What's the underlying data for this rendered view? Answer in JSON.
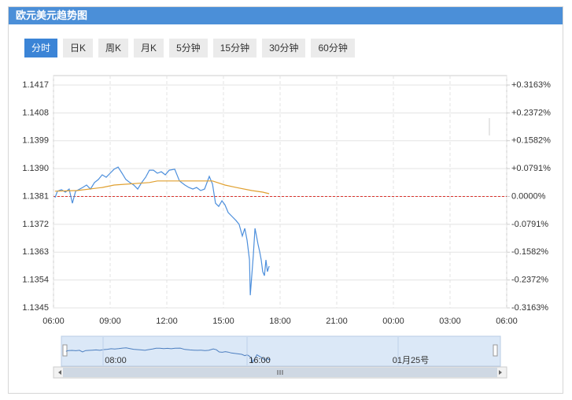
{
  "panel": {
    "title": "欧元美元趋势图",
    "tabs": [
      "分时",
      "日K",
      "周K",
      "月K",
      "5分钟",
      "15分钟",
      "30分钟",
      "60分钟"
    ],
    "active_tab": 0
  },
  "chart_data": {
    "type": "line",
    "xlim": [
      0,
      24
    ],
    "xticks": [
      {
        "value": 0,
        "label": "06:00"
      },
      {
        "value": 3,
        "label": "09:00"
      },
      {
        "value": 6,
        "label": "12:00"
      },
      {
        "value": 9,
        "label": "15:00"
      },
      {
        "value": 12,
        "label": "18:00"
      },
      {
        "value": 15,
        "label": "21:00"
      },
      {
        "value": 18,
        "label": "00:00"
      },
      {
        "value": 21,
        "label": "03:00"
      },
      {
        "value": 24,
        "label": "06:00"
      }
    ],
    "ylim": [
      1.1345,
      1.1417
    ],
    "yticks": [
      1.1417,
      1.1408,
      1.1399,
      {
        "value": 1.139,
        "label": "1.1390"
      },
      1.1381,
      1.1372,
      1.1363,
      1.1354,
      1.1345
    ],
    "y2lim": [
      -0.3163,
      0.3163
    ],
    "y2ticks": [
      {
        "value": 0.3163,
        "label": "+0.3163%"
      },
      {
        "value": 0.2372,
        "label": "+0.2372%"
      },
      {
        "value": 0.1582,
        "label": "+0.1582%"
      },
      {
        "value": 0.0791,
        "label": "+0.0791%"
      },
      {
        "value": 0,
        "label": "0.0000%"
      },
      {
        "value": -0.0791,
        "label": "-0.0791%"
      },
      {
        "value": -0.1582,
        "label": "-0.1582%"
      },
      {
        "value": -0.2372,
        "label": "-0.2372%"
      },
      {
        "value": -0.3163,
        "label": "-0.3163%"
      }
    ],
    "up_color": "#e0231c",
    "down_color": "#1c8c2a",
    "flat_color": "#999999",
    "reference_line": 1.1381,
    "reference_color": "#d9322b",
    "grid": true,
    "series": [
      {
        "color": "#4d8fdc",
        "x": [
          0.08,
          0.21,
          0.42,
          0.63,
          0.83,
          1.0,
          1.17,
          1.33,
          1.54,
          1.75,
          1.96,
          2.17,
          2.38,
          2.58,
          2.79,
          3.0,
          3.21,
          3.42,
          3.63,
          3.83,
          4.04,
          4.25,
          4.46,
          4.67,
          4.88,
          5.08,
          5.29,
          5.5,
          5.71,
          5.92,
          6.13,
          6.42,
          6.67,
          6.96,
          7.17,
          7.38,
          7.58,
          7.79,
          8.0,
          8.25,
          8.42,
          8.58,
          8.75,
          8.92,
          9.08,
          9.25,
          9.46,
          9.67,
          9.83,
          10.0,
          10.13,
          10.25,
          10.38,
          10.42,
          10.5,
          10.58,
          10.67,
          10.75,
          10.83,
          10.92,
          11.0,
          11.08,
          11.17,
          11.25,
          11.33,
          11.42
        ],
        "values": [
          1.13806,
          1.13827,
          1.13832,
          1.13824,
          1.13834,
          1.13788,
          1.13827,
          1.13832,
          1.13839,
          1.13847,
          1.13834,
          1.13855,
          1.13865,
          1.1388,
          1.13872,
          1.13885,
          1.13898,
          1.13905,
          1.13885,
          1.13865,
          1.13855,
          1.13847,
          1.13834,
          1.13855,
          1.13872,
          1.13895,
          1.13895,
          1.13885,
          1.1389,
          1.1388,
          1.13895,
          1.13898,
          1.1386,
          1.13847,
          1.13839,
          1.13834,
          1.13839,
          1.13829,
          1.13834,
          1.13875,
          1.1385,
          1.13788,
          1.13778,
          1.13796,
          1.13783,
          1.13758,
          1.13745,
          1.13732,
          1.1372,
          1.13682,
          1.13707,
          1.13669,
          1.13605,
          1.13491,
          1.13554,
          1.13618,
          1.13707,
          1.13682,
          1.13656,
          1.13631,
          1.13605,
          1.13567,
          1.13554,
          1.13605,
          1.13567,
          1.13585
        ]
      },
      {
        "color": "#e0a030",
        "x": [
          0.08,
          1.25,
          2.58,
          3.21,
          5.08,
          5.5,
          8.42,
          9.08,
          9.67,
          10.5,
          11.08,
          11.42
        ],
        "values": [
          1.13827,
          1.13829,
          1.13839,
          1.13847,
          1.13855,
          1.1386,
          1.1386,
          1.13847,
          1.13839,
          1.13829,
          1.13824,
          1.13819
        ]
      }
    ]
  },
  "navigator": {
    "labels": [
      "08:00",
      "16:00",
      "01月25号"
    ]
  }
}
